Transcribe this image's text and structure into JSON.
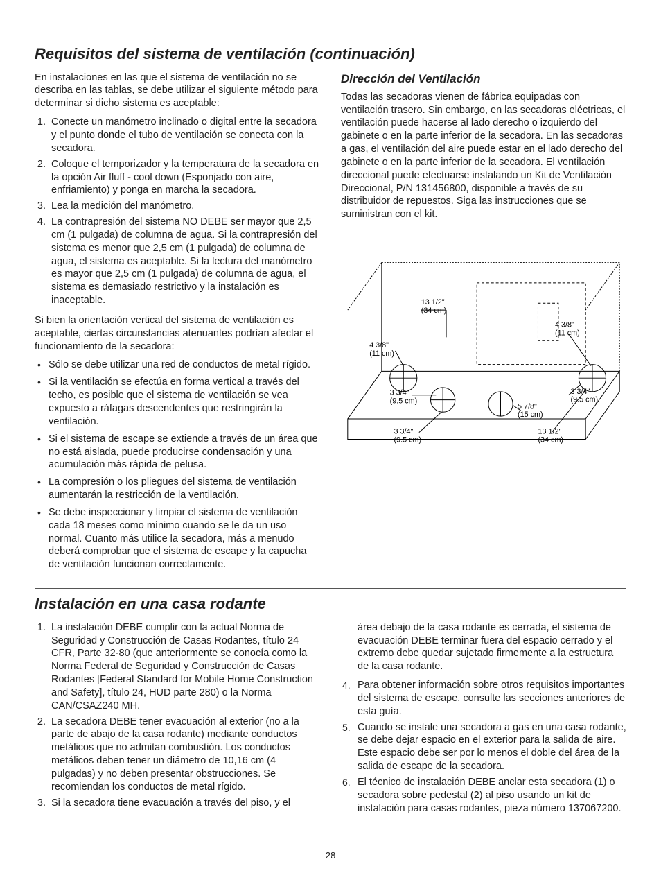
{
  "page_number": "28",
  "section1": {
    "title": "Requisitos del sistema de ventilación (continuación)",
    "intro": "En instalaciones en las que el sistema de ventilación no se describa en las tablas, se debe utilizar el siguiente método para determinar si dicho sistema es aceptable:",
    "steps": [
      "Conecte un manómetro inclinado o digital entre la secadora y el punto donde el tubo de ventilación se conecta con la secadora.",
      "Coloque el temporizador y la temperatura de la secadora en la opción Air fluff - cool down (Esponjado con aire, enfriamiento) y ponga en marcha la secadora.",
      "Lea la medición del manómetro.",
      "La contrapresión del sistema NO DEBE ser mayor que 2,5 cm (1 pulgada) de columna de agua. Si la contrapresión del sistema es menor que 2,5 cm (1 pulgada) de columna de agua, el sistema es aceptable. Si la lectura del manómetro es mayor que 2,5 cm (1 pulgada) de columna de agua, el sistema es demasiado restrictivo y la instalación es inaceptable."
    ],
    "mid": "Si bien la orientación vertical del sistema de ventilación es aceptable, ciertas circunstancias atenuantes podrían afectar el funcionamiento de la secadora:",
    "bullets": [
      "Sólo se debe utilizar una red de conductos de metal rígido.",
      "Si la ventilación se efectúa en forma vertical a través del techo, es posible que el sistema de ventilación se vea expuesto a ráfagas descendentes que restringirán la ventilación.",
      "Si el sistema de escape se extiende a través de un área que no está aislada, puede producirse condensación y una acumulación más rápida de pelusa.",
      "La compresión o los pliegues del sistema de ventilación aumentarán la restricción de la ventilación.",
      "Se debe inspeccionar y limpiar el sistema de ventilación cada 18 meses como mínimo cuando se le da un uso normal. Cuanto más utilice la secadora, más a menudo deberá comprobar que el sistema de escape y la capucha de ventilación funcionan correctamente."
    ],
    "right_heading": "Dirección del Ventilación",
    "right_para": "Todas las secadoras vienen de fábrica equipadas con ventilación trasero. Sin embargo, en las secadoras eléctricas, el ventilación puede hacerse al lado derecho o izquierdo del gabinete o en la parte inferior de la secadora. En las secadoras a gas, el ventilación del aire puede estar en el lado derecho del gabinete o en la parte inferior de la secadora. El ventilación direccional puede efectuarse instalando un Kit de Ventilación Direccional, P/N 131456800, disponible a través de su distribuidor de repuestos. Siga las instrucciones que se suministran con el kit."
  },
  "diagram": {
    "stroke": "#000000",
    "stroke_width": 1,
    "dash": "4 3",
    "hatch": "2 2",
    "bg": "#ffffff",
    "labels": {
      "l1": "13 1/2\"\n(34 cm)",
      "l2": "4 3/8\"\n(11 cm)",
      "l3": "4 3/8\"\n(11 cm)",
      "l4": "3 3/4\"\n(9.5 cm)",
      "l5": "3 3/4\"\n(9.5 cm)",
      "l6": "5 7/8\"\n(15 cm)",
      "l7": "3 3/4\"\n(9.5 cm)",
      "l8": "13 1/2\"\n(34 cm)"
    }
  },
  "section2": {
    "title": "Instalación en una casa rodante",
    "left": [
      "La instalación DEBE cumplir con la actual Norma de Seguridad y Construcción de Casas Rodantes, título 24 CFR, Parte 32-80 (que anteriormente se conocía como la Norma Federal de Seguridad y Construcción de Casas Rodantes [Federal Standard for Mobile Home Construction and Safety], título 24, HUD parte 280) o la Norma CAN/CSAZ240 MH.",
      "La secadora DEBE tener evacuación al exterior (no a la parte de abajo de la casa rodante) mediante conductos metálicos que no admitan combustión. Los conductos metálicos deben tener un diámetro de 10,16 cm (4 pulgadas) y no deben presentar obstrucciones. Se recomiendan los conductos de metal rígido.",
      "Si la secadora tiene evacuación a través del piso, y el"
    ],
    "right": [
      {
        "n": "",
        "t": "área debajo de la casa rodante es cerrada, el sistema de evacuación DEBE terminar fuera del espacio cerrado y el extremo debe quedar sujetado firmemente a la estructura de la casa rodante."
      },
      {
        "n": "4",
        "t": "Para obtener información sobre otros requisitos importantes del sistema de escape, consulte las secciones anteriores de esta guía."
      },
      {
        "n": "5",
        "t": "Cuando se instale una secadora a gas en una casa rodante, se debe dejar espacio en el exterior para la salida de aire. Este espacio debe ser por lo menos el doble del área de la salida de escape de la secadora."
      },
      {
        "n": "6",
        "t": "El técnico de instalación DEBE anclar esta secadora (1) o secadora sobre pedestal (2) al piso usando un kit de instalación para casas rodantes, pieza número 137067200."
      }
    ]
  }
}
